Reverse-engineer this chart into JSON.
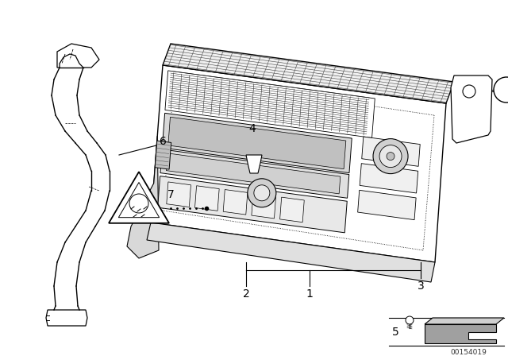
{
  "bg_color": "#ffffff",
  "line_color": "#000000",
  "fig_width": 6.4,
  "fig_height": 4.48,
  "dpi": 100,
  "watermark": "00154019"
}
